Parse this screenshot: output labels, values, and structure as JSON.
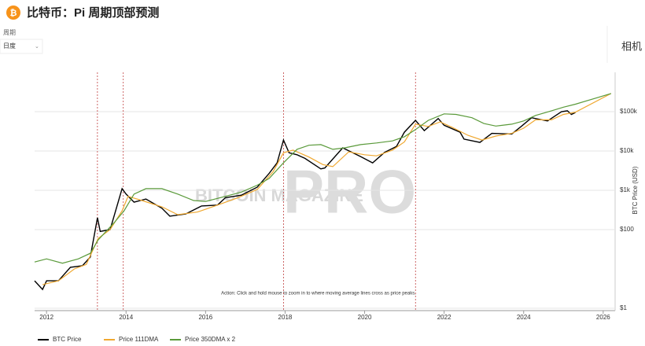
{
  "header": {
    "title": "比特币：Pi 周期顶部预测",
    "period_label": "周期",
    "period_value": "日度",
    "side_text": "相机"
  },
  "chart_data": {
    "type": "line",
    "log_y": true,
    "grid": true,
    "legend": "bottom-left",
    "y_label": "BTC Price (USD)",
    "annotation": "Action: Click and hold mouse to zoom in to where moving average lines cross as price peaks.",
    "watermark": [
      "BITCOIN MAGAZINE",
      "PRO"
    ],
    "xlim": [
      2011.7,
      2026.3
    ],
    "xticks": [
      2012,
      2014,
      2016,
      2018,
      2020,
      2022,
      2024,
      2026
    ],
    "ylim": [
      1,
      1000000
    ],
    "yticks": [
      {
        "value": 1,
        "label": "$1"
      },
      {
        "value": 100,
        "label": "$100"
      },
      {
        "value": 1000,
        "label": "$1k"
      },
      {
        "value": 10000,
        "label": "$10k"
      },
      {
        "value": 100000,
        "label": "$100k"
      }
    ],
    "crossings": [
      2013.28,
      2013.93,
      2017.96,
      2021.28
    ],
    "series": [
      {
        "name": "BTC Price",
        "color": "#000000",
        "width": 1.4,
        "x": [
          2011.7,
          2011.9,
          2012.0,
          2012.3,
          2012.6,
          2012.9,
          2013.1,
          2013.28,
          2013.35,
          2013.6,
          2013.9,
          2014.0,
          2014.2,
          2014.5,
          2014.9,
          2015.1,
          2015.5,
          2015.9,
          2016.3,
          2016.5,
          2016.9,
          2017.3,
          2017.6,
          2017.8,
          2017.96,
          2018.1,
          2018.3,
          2018.5,
          2018.9,
          2019.0,
          2019.45,
          2019.9,
          2020.2,
          2020.5,
          2020.8,
          2021.0,
          2021.28,
          2021.5,
          2021.85,
          2022.0,
          2022.4,
          2022.5,
          2022.9,
          2023.2,
          2023.7,
          2023.95,
          2024.2,
          2024.6,
          2024.95,
          2025.1,
          2025.2,
          2025.3
        ],
        "values": [
          5,
          3,
          5,
          5,
          11,
          12,
          20,
          200,
          90,
          100,
          1100,
          800,
          500,
          600,
          350,
          220,
          250,
          400,
          420,
          650,
          750,
          1200,
          2700,
          5000,
          19000,
          9000,
          8000,
          6500,
          3500,
          3700,
          12000,
          7200,
          5000,
          9200,
          13000,
          30000,
          60000,
          33000,
          67000,
          45000,
          30000,
          20000,
          16500,
          28000,
          27000,
          43000,
          70000,
          58000,
          100000,
          105000,
          85000,
          95000
        ]
      },
      {
        "name": "Price 111DMA",
        "color": "#f0a830",
        "width": 1.2,
        "x": [
          2011.9,
          2012.3,
          2012.7,
          2013.0,
          2013.3,
          2013.6,
          2013.9,
          2014.05,
          2014.4,
          2014.9,
          2015.3,
          2015.8,
          2016.3,
          2016.8,
          2017.3,
          2017.7,
          2017.96,
          2018.2,
          2018.6,
          2018.95,
          2019.2,
          2019.6,
          2020.0,
          2020.3,
          2020.7,
          2021.0,
          2021.28,
          2021.6,
          2021.9,
          2022.2,
          2022.6,
          2022.95,
          2023.3,
          2023.7,
          2024.0,
          2024.3,
          2024.7,
          2025.0,
          2025.3,
          2026.2
        ],
        "values": [
          4,
          5,
          10,
          13,
          60,
          100,
          300,
          700,
          550,
          380,
          240,
          280,
          420,
          640,
          1050,
          3000,
          9000,
          10500,
          7000,
          4500,
          4000,
          9500,
          8000,
          7500,
          10500,
          17000,
          48000,
          42000,
          55000,
          40000,
          25000,
          19000,
          24000,
          28000,
          38000,
          62000,
          62000,
          85000,
          97000,
          290000
        ]
      },
      {
        "name": "Price 350DMA x 2",
        "color": "#5a9a3a",
        "width": 1.2,
        "x": [
          2011.7,
          2012.0,
          2012.4,
          2012.8,
          2013.1,
          2013.3,
          2013.7,
          2013.95,
          2014.2,
          2014.5,
          2014.9,
          2015.3,
          2015.7,
          2016.0,
          2016.5,
          2016.9,
          2017.3,
          2017.6,
          2017.96,
          2018.3,
          2018.6,
          2018.9,
          2019.2,
          2019.5,
          2019.9,
          2020.3,
          2020.7,
          2021.0,
          2021.28,
          2021.6,
          2022.0,
          2022.3,
          2022.7,
          2023.0,
          2023.3,
          2023.7,
          2024.0,
          2024.3,
          2024.7,
          2025.0,
          2025.3,
          2026.2
        ],
        "values": [
          15,
          18,
          14,
          18,
          25,
          55,
          150,
          300,
          800,
          1100,
          1100,
          800,
          550,
          520,
          700,
          900,
          1350,
          2000,
          5000,
          11000,
          14000,
          14500,
          11000,
          12000,
          14500,
          16000,
          18000,
          23000,
          35000,
          60000,
          88000,
          85000,
          70000,
          50000,
          43000,
          48000,
          58000,
          80000,
          105000,
          130000,
          155000,
          290000
        ]
      }
    ]
  }
}
